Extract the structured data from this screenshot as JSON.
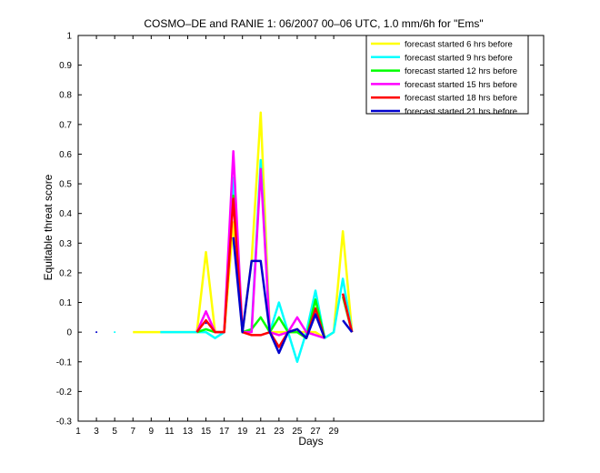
{
  "chart_data": {
    "type": "line",
    "title": "COSMO–DE and RANIE 1: 06/2007 00–06 UTC, 1.0 mm/6h for \"Ems\"",
    "xlabel": "Days",
    "ylabel": "Equitable threat score",
    "xlim": [
      1,
      52
    ],
    "ylim": [
      -0.3,
      1
    ],
    "x_ticks": [
      1,
      3,
      5,
      7,
      9,
      11,
      13,
      15,
      17,
      19,
      21,
      23,
      25,
      27,
      29
    ],
    "y_ticks": [
      -0.3,
      -0.2,
      -0.1,
      0,
      0.1,
      0.2,
      0.3,
      0.4,
      0.5,
      0.6,
      0.7,
      0.8,
      0.9,
      1
    ],
    "legend_position": "top-right",
    "series": [
      {
        "name": "forecast started 6 hrs before",
        "color": "#ffff00",
        "points": [
          [
            7,
            0
          ],
          [
            8,
            0
          ],
          [
            9,
            0
          ],
          [
            10,
            0
          ],
          [
            11,
            0
          ],
          [
            12,
            0
          ],
          [
            13,
            0
          ],
          [
            14,
            0
          ],
          [
            15,
            0.27
          ],
          [
            16,
            0
          ],
          [
            17,
            0
          ],
          [
            18,
            0.37
          ],
          [
            19,
            0
          ],
          [
            20,
            0.24
          ],
          [
            21,
            0.74
          ],
          [
            22,
            0
          ],
          [
            23,
            0
          ],
          [
            24,
            0
          ],
          [
            25,
            0
          ],
          [
            26,
            0
          ],
          [
            27,
            0
          ],
          [
            28,
            -0.02
          ],
          [
            29,
            0
          ],
          [
            30,
            0.34
          ],
          [
            31,
            0
          ]
        ]
      },
      {
        "name": "forecast started 9 hrs before",
        "color": "#00ffff",
        "points": [
          [
            5,
            0
          ],
          [
            10,
            0
          ],
          [
            11,
            0
          ],
          [
            12,
            0
          ],
          [
            13,
            0
          ],
          [
            14,
            0
          ],
          [
            15,
            0
          ],
          [
            16,
            -0.02
          ],
          [
            17,
            0
          ],
          [
            18,
            0.52
          ],
          [
            19,
            0
          ],
          [
            20,
            0.01
          ],
          [
            21,
            0.58
          ],
          [
            22,
            0
          ],
          [
            23,
            0.1
          ],
          [
            24,
            0
          ],
          [
            25,
            -0.1
          ],
          [
            26,
            0
          ],
          [
            27,
            0.14
          ],
          [
            28,
            -0.02
          ],
          [
            29,
            0
          ],
          [
            30,
            0.18
          ],
          [
            31,
            0
          ]
        ]
      },
      {
        "name": "forecast started 12 hrs before",
        "color": "#00ff00",
        "points": [
          [
            14,
            0
          ],
          [
            15,
            0.01
          ],
          [
            16,
            0
          ],
          [
            17,
            0
          ],
          [
            18,
            0.46
          ],
          [
            19,
            0
          ],
          [
            20,
            0.01
          ],
          [
            21,
            0.05
          ],
          [
            22,
            0
          ],
          [
            23,
            0.05
          ],
          [
            24,
            0
          ],
          [
            25,
            0
          ],
          [
            26,
            -0.02
          ],
          [
            27,
            0.11
          ],
          [
            28,
            -0.02
          ],
          [
            30,
            0.12
          ],
          [
            31,
            0
          ]
        ]
      },
      {
        "name": "forecast started 15 hrs before",
        "color": "#ff00ff",
        "points": [
          [
            14,
            0
          ],
          [
            15,
            0.07
          ],
          [
            16,
            0
          ],
          [
            17,
            0
          ],
          [
            18,
            0.61
          ],
          [
            19,
            0
          ],
          [
            20,
            0
          ],
          [
            21,
            0.55
          ],
          [
            22,
            0
          ],
          [
            23,
            -0.01
          ],
          [
            24,
            0
          ],
          [
            25,
            0.05
          ],
          [
            26,
            0
          ],
          [
            27,
            -0.01
          ],
          [
            28,
            -0.02
          ],
          [
            30,
            0.13
          ],
          [
            31,
            0
          ]
        ]
      },
      {
        "name": "forecast started 18 hrs before",
        "color": "#ff0000",
        "points": [
          [
            14,
            0
          ],
          [
            15,
            0.04
          ],
          [
            16,
            0
          ],
          [
            17,
            0
          ],
          [
            18,
            0.45
          ],
          [
            19,
            0
          ],
          [
            20,
            -0.01
          ],
          [
            21,
            -0.01
          ],
          [
            22,
            0
          ],
          [
            23,
            -0.05
          ],
          [
            24,
            0
          ],
          [
            25,
            0.01
          ],
          [
            26,
            -0.02
          ],
          [
            27,
            0.08
          ],
          [
            28,
            -0.02
          ],
          [
            30,
            0.13
          ],
          [
            31,
            0
          ]
        ]
      },
      {
        "name": "forecast started 21 hrs before",
        "color": "#0000cc",
        "points": [
          [
            3,
            0
          ],
          [
            15,
            0.03
          ],
          [
            18,
            0.32
          ],
          [
            19,
            0
          ],
          [
            20,
            0.24
          ],
          [
            21,
            0.24
          ],
          [
            22,
            0
          ],
          [
            23,
            -0.07
          ],
          [
            24,
            0
          ],
          [
            25,
            0.01
          ],
          [
            26,
            -0.02
          ],
          [
            27,
            0.06
          ],
          [
            28,
            -0.02
          ],
          [
            30,
            0.04
          ],
          [
            31,
            0
          ]
        ]
      }
    ]
  }
}
